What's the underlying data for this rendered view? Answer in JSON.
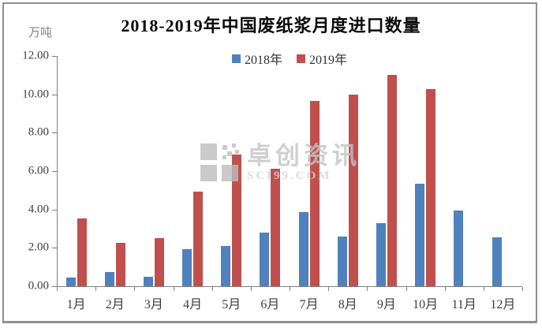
{
  "title": "2018-2019年中国废纸浆月度进口数量",
  "y_axis": {
    "unit_label": "万吨",
    "tick_labels": [
      "12.00",
      "10.00",
      "8.00",
      "6.00",
      "4.00",
      "2.00",
      "0.00"
    ]
  },
  "legend": {
    "items": [
      {
        "label": "2018年",
        "color": "#4f81bd"
      },
      {
        "label": "2019年",
        "color": "#c0504d"
      }
    ]
  },
  "watermark": {
    "logo_icon": "pixel-grid-logo",
    "text": "卓创资讯",
    "subtext": "SCI99.COM"
  },
  "colors": {
    "bar_2018": "#4f81bd",
    "bar_2019": "#c0504d",
    "axis": "#7f7f7f",
    "frame_border": "#8f8f8f"
  },
  "chart_data": {
    "type": "bar",
    "title": "2018-2019年中国废纸浆月度进口数量",
    "xlabel": "",
    "ylabel": "万吨",
    "ylim": [
      0,
      12
    ],
    "ytick_step": 2,
    "grid": false,
    "legend_position": "top-center",
    "categories": [
      "1月",
      "2月",
      "3月",
      "4月",
      "5月",
      "6月",
      "7月",
      "8月",
      "9月",
      "10月",
      "11月",
      "12月"
    ],
    "series": [
      {
        "name": "2018年",
        "color": "#4f81bd",
        "values": [
          0.44,
          0.72,
          0.51,
          1.93,
          2.1,
          2.8,
          3.85,
          2.6,
          3.29,
          5.36,
          3.96,
          2.56
        ]
      },
      {
        "name": "2019年",
        "color": "#c0504d",
        "values": [
          3.54,
          2.25,
          2.52,
          4.95,
          6.87,
          6.11,
          9.66,
          10.0,
          11.02,
          10.28,
          null,
          null
        ]
      }
    ]
  }
}
